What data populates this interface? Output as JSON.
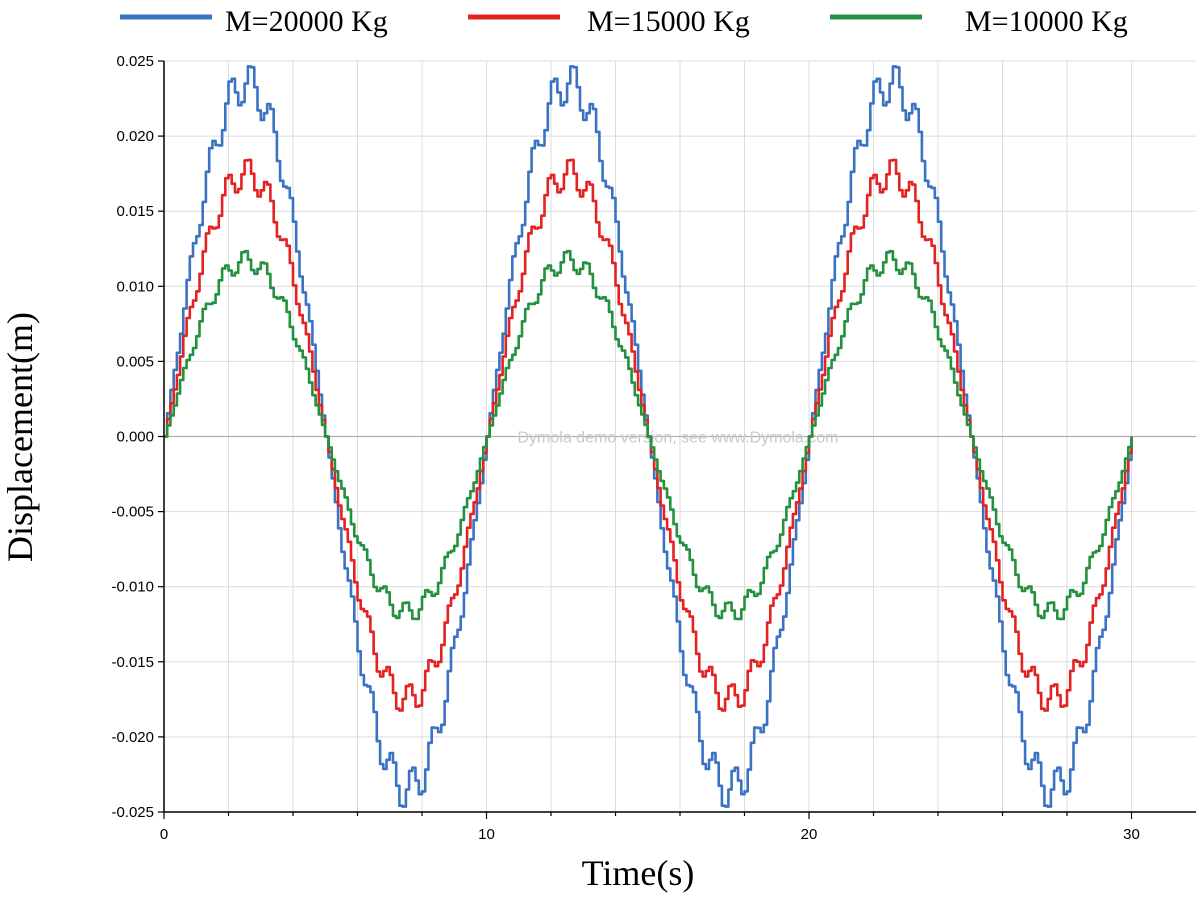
{
  "chart_data": {
    "type": "line",
    "title": "",
    "xlabel": "Time(s)",
    "ylabel": "Displacement(m)",
    "xlim": [
      0,
      32
    ],
    "ylim": [
      -0.025,
      0.025
    ],
    "xticks": [
      0,
      10,
      20,
      30
    ],
    "xtick_labels": [
      "0",
      "10",
      "20",
      "30"
    ],
    "yticks": [
      0.025,
      0.02,
      0.015,
      0.01,
      0.005,
      0.0,
      -0.005,
      -0.01,
      -0.015,
      -0.02,
      -0.025
    ],
    "ytick_labels": [
      "0.025",
      "0.020",
      "0.015",
      "0.010",
      "0.005",
      "0.000",
      "-0.005",
      "-0.010",
      "-0.015",
      "-0.020",
      "-0.025"
    ],
    "grid": true,
    "legend_position": "top",
    "watermark": "Dymola demo version, see www.Dymola.com",
    "series": [
      {
        "name": "M=20000 Kg",
        "color": "#3a72c4",
        "amplitude": 0.0235,
        "period": 10,
        "x_range": [
          0,
          30
        ]
      },
      {
        "name": "M=15000 Kg",
        "color": "#e32222",
        "amplitude": 0.0175,
        "period": 10,
        "x_range": [
          0,
          30
        ]
      },
      {
        "name": "M=10000 Kg",
        "color": "#23913f",
        "amplitude": 0.0117,
        "period": 10,
        "x_range": [
          0,
          30
        ]
      }
    ]
  }
}
